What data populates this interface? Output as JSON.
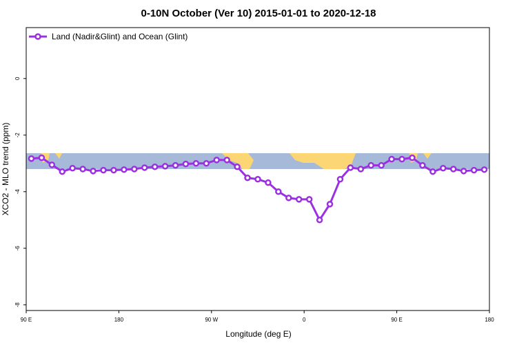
{
  "chart_data": {
    "type": "line",
    "title": "0-10N October (Ver 10)   2015-01-01 to 2020-12-18",
    "x_label": "Longitude (deg E)",
    "y_label": "XCO2 - MLO trend (ppm)",
    "x": [
      95,
      105,
      115,
      125,
      135,
      145,
      155,
      165,
      175,
      185,
      195,
      205,
      215,
      225,
      235,
      245,
      255,
      265,
      275,
      285,
      295,
      305,
      315,
      325,
      335,
      345,
      355,
      365,
      375,
      385,
      395,
      405,
      415,
      425,
      435,
      445,
      455,
      465,
      475,
      485,
      495,
      505,
      515,
      525,
      535
    ],
    "series": [
      {
        "name": "Land (Nadir&Glint) and Ocean (Glint)",
        "color": "#9b30e0",
        "values": [
          -2.83,
          -2.8,
          -3.05,
          -3.29,
          -3.17,
          -3.2,
          -3.27,
          -3.24,
          -3.24,
          -3.22,
          -3.2,
          -3.15,
          -3.12,
          -3.1,
          -3.07,
          -3.02,
          -3.0,
          -3.0,
          -2.88,
          -2.88,
          -3.12,
          -3.51,
          -3.56,
          -3.68,
          -4.0,
          -4.22,
          -4.27,
          -4.27,
          -5.0,
          -4.44,
          -3.56,
          -3.15,
          -3.2,
          -3.07,
          -3.07,
          -2.85,
          -2.85,
          -2.8,
          -3.07,
          -3.29,
          -3.17,
          -3.2,
          -3.27,
          -3.24,
          -3.22
        ]
      }
    ],
    "xlim": [
      90,
      540
    ],
    "xticks": [
      {
        "value": 90,
        "label": "90 E"
      },
      {
        "value": 180,
        "label": "180"
      },
      {
        "value": 270,
        "label": "90 W"
      },
      {
        "value": 360,
        "label": "0"
      },
      {
        "value": 450,
        "label": "90 E"
      },
      {
        "value": 540,
        "label": "180"
      }
    ],
    "ylim": [
      -8.2,
      1.8
    ],
    "yticks": [
      0,
      -2,
      -4,
      -6,
      -8
    ],
    "legend": "top-left"
  }
}
